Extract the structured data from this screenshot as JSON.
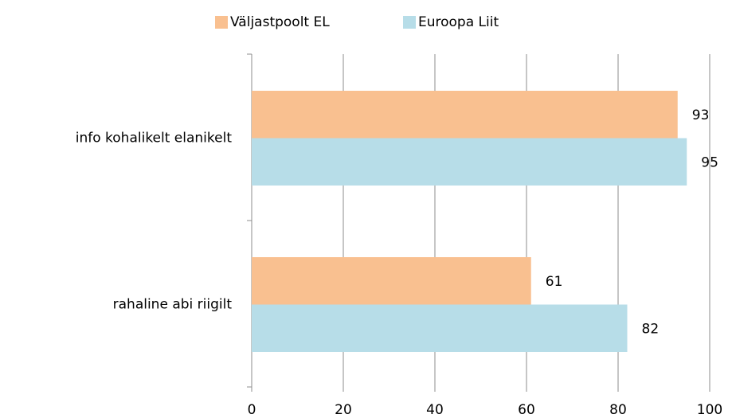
{
  "chart_data": {
    "type": "hbar",
    "categories": [
      "info kohalikelt elanikelt",
      "rahaline abi riigilt"
    ],
    "series": [
      {
        "name": "Väljastpoolt EL",
        "color": "#f9c090",
        "values": [
          93,
          61
        ]
      },
      {
        "name": "Euroopa Liit",
        "color": "#b7dde8",
        "values": [
          95,
          82
        ]
      }
    ],
    "xlim": [
      0,
      100
    ],
    "xticks": [
      0,
      20,
      40,
      60,
      80,
      100
    ],
    "grid": true,
    "legend": "top"
  }
}
